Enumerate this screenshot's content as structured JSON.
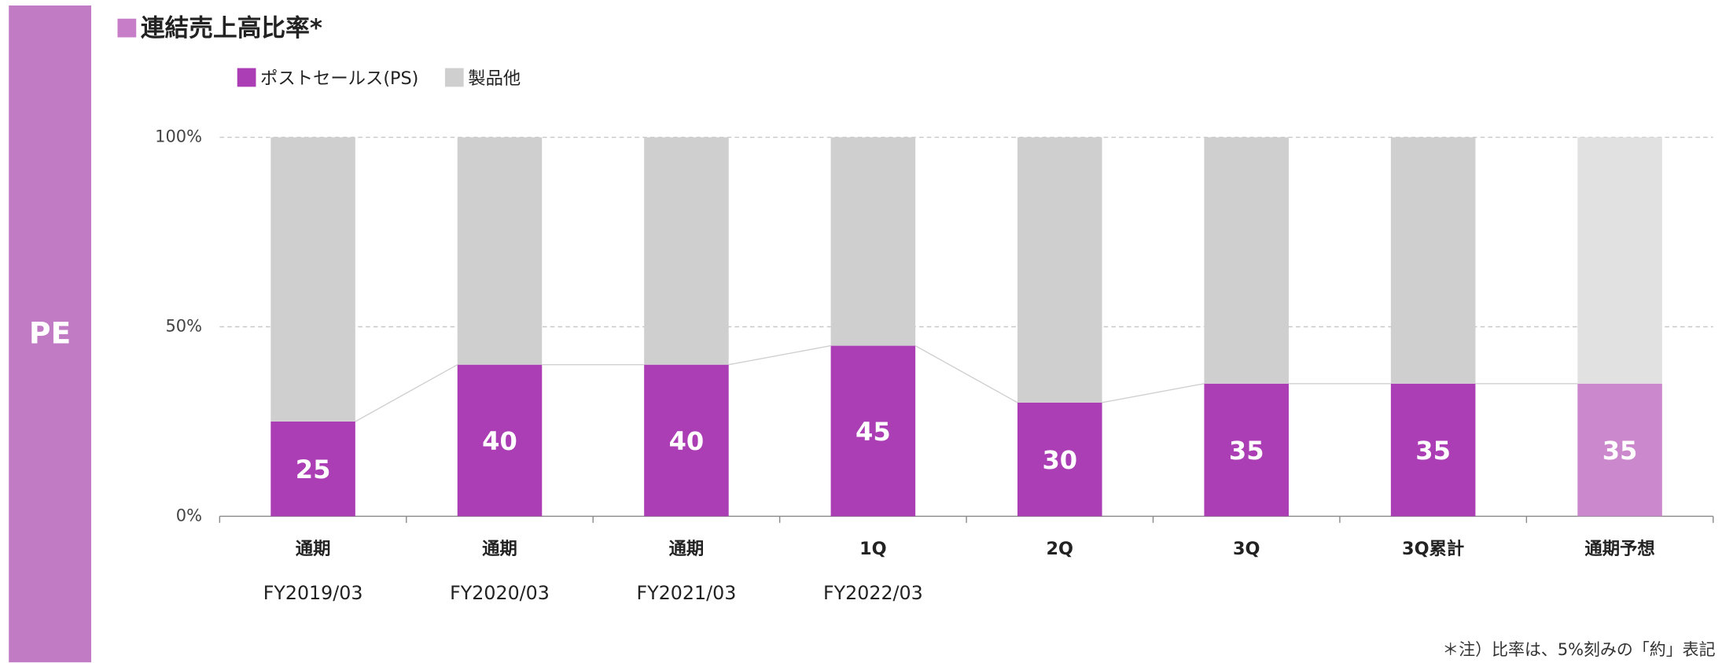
{
  "side_label": "PE",
  "footnote": "＊注）比率は、5%刻みの「約」表記",
  "chart_data": {
    "type": "stacked_bar",
    "title": "連結売上高比率*",
    "title_marker_color": "#c77dc7",
    "categories": [
      "通期",
      "通期",
      "通期",
      "1Q",
      "2Q",
      "3Q",
      "3Q累計",
      "通期予想"
    ],
    "category_groups": [
      "FY2019/03",
      "FY2020/03",
      "FY2021/03",
      "FY2022/03",
      null,
      null,
      null,
      null
    ],
    "series": [
      {
        "name": "ポストセールス(PS)",
        "color": "#ab3db5",
        "colors": [
          "#ab3db5",
          "#ab3db5",
          "#ab3db5",
          "#ab3db5",
          "#ab3db5",
          "#ab3db5",
          "#ab3db5",
          "#cc88cc"
        ],
        "values": [
          25,
          40,
          40,
          45,
          30,
          35,
          35,
          35
        ]
      },
      {
        "name": "製品他",
        "color": "#d0cfd0",
        "colors": [
          "#d0cfd0",
          "#d0cfd0",
          "#d0cfd0",
          "#d0cfd0",
          "#d0cfd0",
          "#d0cfd0",
          "#d0cfd0",
          "#e2e1e2"
        ],
        "values": [
          75,
          60,
          60,
          55,
          70,
          65,
          65,
          65
        ]
      }
    ],
    "ylim": [
      0,
      100
    ],
    "yticks": [
      {
        "value": 0,
        "label": "0%"
      },
      {
        "value": 50,
        "label": "50%"
      },
      {
        "value": 100,
        "label": "100%"
      }
    ],
    "grid": true,
    "legend": "top-left"
  }
}
